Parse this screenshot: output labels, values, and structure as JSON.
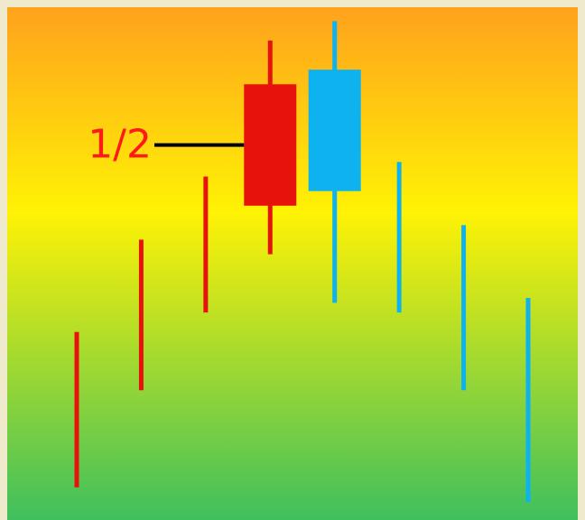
{
  "chart_data": {
    "type": "candlestick",
    "title": "",
    "xlabel": "",
    "ylabel": "",
    "grid": false,
    "ylim": [
      0,
      100
    ],
    "colors": {
      "bearish": "#e8120c",
      "bullish": "#0db2ef",
      "annotation_text": "#ff1a1a",
      "annotation_line": "#000000",
      "background_top": "#ffa21c",
      "background_mid": "#fff205",
      "background_bottom": "#3fbf5e"
    },
    "candles": [
      {
        "direction": "bearish",
        "style": "line",
        "low": 3,
        "high": 35
      },
      {
        "direction": "bearish",
        "style": "line",
        "low": 23,
        "high": 54
      },
      {
        "direction": "bearish",
        "style": "line",
        "low": 39,
        "high": 67
      },
      {
        "direction": "bearish",
        "style": "candle",
        "low": 51,
        "high": 95,
        "body_low": 61,
        "body_high": 86
      },
      {
        "direction": "bullish",
        "style": "candle",
        "low": 41,
        "high": 99,
        "body_low": 64,
        "body_high": 89
      },
      {
        "direction": "bullish",
        "style": "line",
        "low": 39,
        "high": 70
      },
      {
        "direction": "bullish",
        "style": "line",
        "low": 23,
        "high": 57
      },
      {
        "direction": "bullish",
        "style": "line",
        "low": 0,
        "high": 42
      }
    ],
    "annotation": {
      "text": "1/2",
      "target_candle": 3,
      "level": 73.5
    }
  }
}
